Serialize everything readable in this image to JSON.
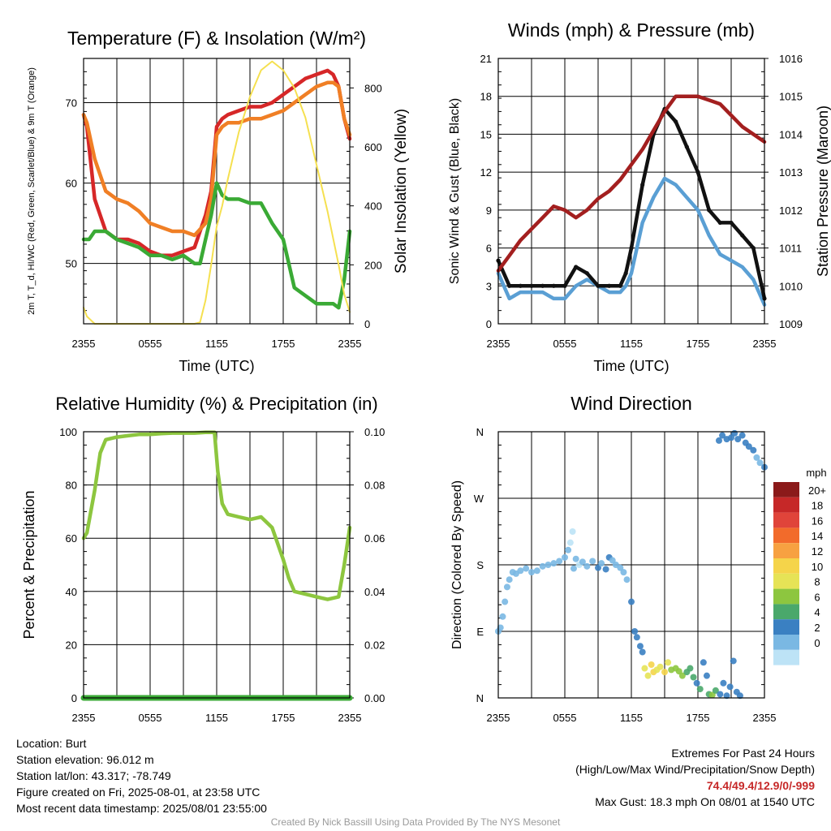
{
  "chart_data": [
    {
      "type": "line",
      "title": "Temperature (F) & Insolation (W/m²)",
      "xlabel": "Time (UTC)",
      "ylabel": "2m T, T_d, HI/WC (Red, Green, Scarlet/Blue) & 9m T (Orange)",
      "y2label": "Solar Insolation (Yellow)",
      "x_ticks": [
        "2355",
        "0555",
        "1155",
        "1755",
        "2355"
      ],
      "ylim": [
        42.5,
        75.5
      ],
      "yticks": [
        50,
        60,
        70
      ],
      "y2lim": [
        0,
        900
      ],
      "y2ticks": [
        0,
        200,
        400,
        600,
        800
      ],
      "series": [
        {
          "color": "#d62728",
          "x": [
            0,
            0.3,
            1,
            2,
            3,
            4,
            5,
            6,
            7,
            8,
            9,
            10,
            11,
            11.5,
            12,
            12.5,
            13,
            14,
            15,
            16,
            17,
            18,
            19,
            20,
            21,
            22,
            22.5,
            23,
            23.5,
            24
          ],
          "values": [
            68.5,
            67,
            58,
            54,
            53,
            53,
            52.5,
            51.5,
            51,
            51,
            51.5,
            52,
            56,
            59,
            67,
            68,
            68.5,
            69,
            69.5,
            69.5,
            70,
            71,
            72,
            73,
            73.5,
            74,
            73.5,
            72,
            68,
            65.5
          ]
        },
        {
          "color": "#f07f25",
          "x": [
            0,
            0.3,
            1,
            2,
            3,
            4,
            5,
            6,
            7,
            8,
            9,
            10,
            11,
            11.5,
            12,
            12.5,
            13,
            14,
            15,
            16,
            17,
            18,
            19,
            20,
            21,
            22,
            22.5,
            23,
            23.5,
            24
          ],
          "values": [
            68.5,
            67.5,
            63,
            59,
            58,
            57.5,
            56.5,
            55,
            54.5,
            54,
            54,
            53.5,
            55,
            58,
            66,
            67,
            67.5,
            67.5,
            68,
            68,
            68.5,
            69,
            70,
            71,
            72,
            72.5,
            72.5,
            72,
            68,
            66
          ]
        },
        {
          "color": "#3aaa35",
          "x": [
            0,
            0.5,
            1,
            2,
            3,
            4,
            5,
            6,
            7,
            8,
            9,
            10,
            10.5,
            11,
            11.5,
            12,
            12.5,
            13,
            14,
            15,
            16,
            17,
            18,
            19,
            20,
            21,
            22,
            22.5,
            23,
            23.5,
            24
          ],
          "values": [
            53,
            53,
            54,
            54,
            53,
            52.5,
            52,
            51,
            51,
            50.5,
            51,
            50,
            50,
            53,
            56,
            60,
            58.5,
            58,
            58,
            57.5,
            57.5,
            55,
            53,
            47,
            46,
            45,
            45,
            45,
            44.5,
            48,
            54
          ]
        },
        {
          "color": "#f5e050",
          "axis": "y2",
          "x": [
            0,
            0.3,
            1,
            2,
            4,
            6,
            8,
            10,
            10.5,
            11,
            11.5,
            12,
            12.5,
            13,
            14,
            15,
            16,
            17,
            18,
            19,
            20,
            21,
            22,
            23,
            23.5,
            24
          ],
          "values": [
            55,
            25,
            0,
            0,
            0,
            0,
            0,
            0,
            5,
            80,
            200,
            330,
            400,
            490,
            650,
            770,
            860,
            890,
            860,
            800,
            700,
            540,
            380,
            200,
            100,
            40
          ]
        }
      ]
    },
    {
      "type": "line",
      "title": "Winds (mph) & Pressure (mb)",
      "xlabel": "Time (UTC)",
      "ylabel": "Sonic Wind & Gust (Blue, Black)",
      "y2label": "Station Pressure (Maroon)",
      "x_ticks": [
        "2355",
        "0555",
        "1155",
        "1755",
        "2355"
      ],
      "ylim": [
        0,
        21
      ],
      "yticks": [
        0,
        3,
        6,
        9,
        12,
        15,
        18,
        21
      ],
      "y2lim": [
        1009,
        1016
      ],
      "y2ticks": [
        1009,
        1010,
        1011,
        1012,
        1013,
        1014,
        1015,
        1016
      ],
      "series": [
        {
          "color": "#5a9fd4",
          "x": [
            0,
            1,
            2,
            3,
            4,
            5,
            6,
            7,
            8,
            9,
            10,
            11,
            11.5,
            12,
            13,
            14,
            15,
            16,
            17,
            18,
            19,
            20,
            21,
            22,
            23,
            24
          ],
          "values": [
            4,
            2,
            2.5,
            2.5,
            2.5,
            2,
            2,
            3,
            3.5,
            3,
            2.5,
            2.5,
            3,
            4,
            8,
            10,
            11.5,
            11,
            10,
            9,
            7,
            5.5,
            5,
            4.5,
            3.5,
            1.5
          ]
        },
        {
          "color": "#111111",
          "x": [
            0,
            1,
            2,
            3,
            4,
            5,
            6,
            7,
            8,
            9,
            10,
            11,
            11.5,
            12,
            13,
            14,
            15,
            16,
            17,
            18,
            19,
            20,
            21,
            22,
            23,
            24
          ],
          "values": [
            5,
            3,
            3,
            3,
            3,
            3,
            3,
            4.5,
            4,
            3,
            3,
            3,
            4,
            6,
            11,
            15,
            17,
            16,
            14,
            12,
            9,
            8,
            8,
            7,
            6,
            2
          ]
        },
        {
          "color": "#a31f1f",
          "axis": "y2",
          "x": [
            0,
            1,
            2,
            3,
            4,
            5,
            6,
            7,
            8,
            9,
            10,
            11,
            12,
            13,
            14,
            15,
            16,
            17,
            18,
            19,
            20,
            21,
            22,
            23,
            24
          ],
          "values": [
            1010.4,
            1010.8,
            1011.2,
            1011.5,
            1011.8,
            1012.1,
            1012.0,
            1011.8,
            1012.0,
            1012.3,
            1012.5,
            1012.8,
            1013.2,
            1013.6,
            1014.1,
            1014.6,
            1015.0,
            1015.0,
            1015.0,
            1014.9,
            1014.8,
            1014.5,
            1014.2,
            1014.0,
            1013.8
          ]
        }
      ]
    },
    {
      "type": "line",
      "title": "Relative Humidity (%) & Precipitation (in)",
      "ylabel": "Percent & Precipitation",
      "x_ticks": [
        "2355",
        "0555",
        "1155",
        "1755",
        "2355"
      ],
      "ylim": [
        0,
        100
      ],
      "yticks": [
        0,
        20,
        40,
        60,
        80,
        100
      ],
      "y2lim": [
        0,
        0.1
      ],
      "y2ticks": [
        "0.00",
        "0.02",
        "0.04",
        "0.06",
        "0.08",
        "0.10"
      ],
      "series": [
        {
          "color": "#8dc63f",
          "x": [
            0,
            0.3,
            1,
            1.5,
            2,
            3,
            4,
            5,
            6,
            7,
            8,
            9,
            10,
            11,
            11.8,
            12.1,
            12.5,
            13,
            14,
            15,
            16,
            17,
            18,
            18.5,
            19,
            20,
            21,
            22,
            23,
            23.5,
            24
          ],
          "values": [
            60,
            62,
            78,
            92,
            97,
            98,
            98.5,
            99,
            99,
            99.3,
            99.5,
            99.5,
            99.5,
            99.8,
            99.8,
            85,
            73,
            69,
            68,
            67,
            68,
            64,
            52,
            45,
            40,
            39,
            38,
            37,
            38,
            50,
            64
          ]
        },
        {
          "color": "#3aaa35",
          "axis": "y2",
          "x": [
            0,
            24
          ],
          "values": [
            0,
            0
          ]
        }
      ]
    },
    {
      "type": "scatter",
      "title": "Wind Direction",
      "ylabel": "Direction (Colored By Speed)",
      "x_ticks": [
        "2355",
        "0555",
        "1155",
        "1755",
        "2355"
      ],
      "y_ticks": [
        "N",
        "E",
        "S",
        "W",
        "N"
      ],
      "ylim": [
        0,
        360
      ],
      "legend_title": "mph",
      "legend_labels": [
        "20+",
        "18",
        "16",
        "14",
        "12",
        "10",
        "8",
        "6",
        "4",
        "2",
        "0"
      ],
      "legend_colors": [
        "#8b1a1a",
        "#c62828",
        "#e0443a",
        "#f26b2b",
        "#f7a141",
        "#f5d44a",
        "#e6e356",
        "#8dc63f",
        "#4aa86b",
        "#3a80c2",
        "#7ab8e3",
        "#bde3f6"
      ],
      "speed_colors": [
        "#bde3f6",
        "#7ab8e3",
        "#3a80c2",
        "#4aa86b",
        "#8dc63f",
        "#e6e356",
        "#f5d44a",
        "#f7a141"
      ],
      "points": [
        [
          0,
          90,
          1
        ],
        [
          0.2,
          95,
          1
        ],
        [
          0.4,
          110,
          1
        ],
        [
          0.6,
          130,
          1
        ],
        [
          0.8,
          150,
          1
        ],
        [
          1,
          160,
          1
        ],
        [
          1.3,
          170,
          1
        ],
        [
          1.6,
          168,
          1
        ],
        [
          2,
          172,
          1
        ],
        [
          2.5,
          175,
          1
        ],
        [
          3,
          170,
          1
        ],
        [
          3.5,
          172,
          1
        ],
        [
          4,
          178,
          1
        ],
        [
          4.5,
          180,
          1
        ],
        [
          5,
          182,
          1
        ],
        [
          5.5,
          185,
          1
        ],
        [
          6,
          190,
          1
        ],
        [
          6.3,
          200,
          1
        ],
        [
          6.5,
          210,
          0
        ],
        [
          6.7,
          225,
          0
        ],
        [
          6.8,
          175,
          1
        ],
        [
          7,
          188,
          1
        ],
        [
          7.3,
          180,
          0
        ],
        [
          7.6,
          184,
          1
        ],
        [
          8,
          178,
          1
        ],
        [
          8.5,
          185,
          1
        ],
        [
          9,
          176,
          2
        ],
        [
          9.3,
          182,
          1
        ],
        [
          9.7,
          174,
          2
        ],
        [
          10,
          190,
          2
        ],
        [
          10.3,
          186,
          1
        ],
        [
          10.6,
          180,
          1
        ],
        [
          11,
          176,
          1
        ],
        [
          11.3,
          170,
          1
        ],
        [
          11.6,
          160,
          1
        ],
        [
          12,
          130,
          2
        ],
        [
          12.3,
          90,
          2
        ],
        [
          12.5,
          82,
          2
        ],
        [
          12.8,
          70,
          2
        ],
        [
          13,
          62,
          2
        ],
        [
          13.2,
          40,
          5
        ],
        [
          13.5,
          30,
          5
        ],
        [
          13.8,
          45,
          6
        ],
        [
          14,
          35,
          6
        ],
        [
          14.3,
          38,
          5
        ],
        [
          14.6,
          42,
          5
        ],
        [
          15,
          35,
          6
        ],
        [
          15.3,
          48,
          5
        ],
        [
          15.6,
          38,
          4
        ],
        [
          16,
          40,
          4
        ],
        [
          16.3,
          36,
          4
        ],
        [
          16.6,
          30,
          4
        ],
        [
          17,
          35,
          3
        ],
        [
          17.3,
          40,
          3
        ],
        [
          17.6,
          28,
          3
        ],
        [
          17.9,
          20,
          2
        ],
        [
          18.2,
          12,
          3
        ],
        [
          18.5,
          48,
          2
        ],
        [
          18.8,
          30,
          2
        ],
        [
          19,
          5,
          3
        ],
        [
          19.3,
          4,
          4
        ],
        [
          19.6,
          10,
          3
        ],
        [
          20,
          5,
          2
        ],
        [
          20.3,
          20,
          2
        ],
        [
          20.6,
          3,
          2
        ],
        [
          20.9,
          15,
          2
        ],
        [
          21.2,
          50,
          2
        ],
        [
          21.5,
          8,
          2
        ],
        [
          21.8,
          3,
          2
        ],
        [
          19.9,
          348,
          2
        ],
        [
          20.2,
          355,
          2
        ],
        [
          20.6,
          350,
          2
        ],
        [
          21,
          352,
          2
        ],
        [
          21.3,
          358,
          2
        ],
        [
          21.6,
          350,
          2
        ],
        [
          22,
          355,
          2
        ],
        [
          22.3,
          345,
          2
        ],
        [
          22.6,
          340,
          2
        ],
        [
          23,
          335,
          2
        ],
        [
          23.3,
          325,
          1
        ],
        [
          23.6,
          318,
          1
        ],
        [
          24,
          312,
          2
        ]
      ]
    }
  ],
  "info_left": {
    "location": "Location: Burt",
    "elevation": "Station elevation: 96.012 m",
    "latlon": "Station lat/lon: 43.317; -78.749",
    "created": "Figure created on Fri, 2025-08-01, at 23:58 UTC",
    "recent": "Most recent data timestamp: 2025/08/01 23:55:00"
  },
  "info_right": {
    "extremes_title": "Extremes For Past 24 Hours",
    "extremes_legend": "(High/Low/Max Wind/Precipitation/Snow Depth)",
    "extremes_values": "74.4/49.4/12.9/0/-999",
    "max_gust": "Max Gust: 18.3 mph On 08/01 at 1540 UTC"
  },
  "credit": "Created By Nick Bassill Using Data Provided By The NYS Mesonet"
}
